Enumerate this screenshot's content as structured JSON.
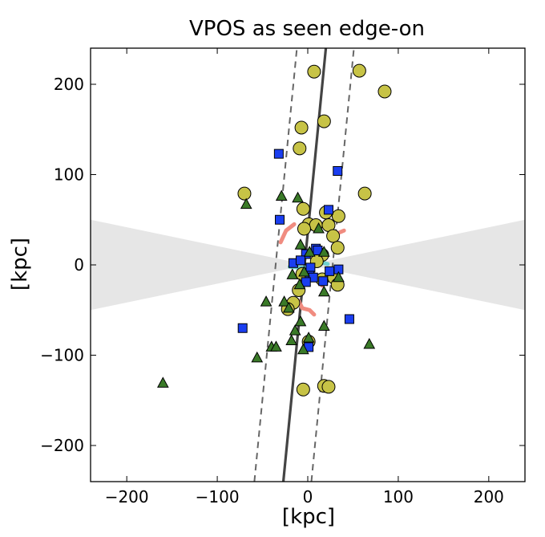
{
  "chart_data": {
    "type": "scatter",
    "title": "VPOS as seen edge-on",
    "xlabel": "[kpc]",
    "ylabel": "[kpc]",
    "xlim": [
      -240,
      240
    ],
    "ylim": [
      -240,
      240
    ],
    "xticks": [
      -200,
      -100,
      0,
      100,
      200
    ],
    "yticks": [
      -200,
      -100,
      0,
      100,
      200
    ],
    "xtick_labels": [
      "−200",
      "−100",
      "0",
      "100",
      "200"
    ],
    "ytick_labels": [
      "−200",
      "−100",
      "0",
      "100",
      "200"
    ],
    "grid": false,
    "colors": {
      "circle_fill": "#c7c346",
      "square_fill": "#1a3ef0",
      "triangle_fill": "#3a7a28",
      "wedge_fill": "#e6e6e6",
      "fit_line": "#444444",
      "dashed_line": "#666666",
      "pink_track": "#f08c80",
      "cyan_track": "#6ed0d0"
    },
    "obscured_wedge": {
      "left_edge_y": [
        -50,
        50
      ],
      "right_edge_y": [
        -50,
        50
      ]
    },
    "fit_line": {
      "x_at_ymin": -27,
      "x_at_ymax": 20
    },
    "dashed_lines": [
      {
        "x_at_ymin": -59,
        "x_at_ymax": -12
      },
      {
        "x_at_ymin": 4,
        "x_at_ymax": 51
      }
    ],
    "series": [
      {
        "marker": "circle",
        "points": [
          [
            7,
            214
          ],
          [
            57,
            215
          ],
          [
            85,
            192
          ],
          [
            -7,
            152
          ],
          [
            18,
            159
          ],
          [
            -9,
            129
          ],
          [
            -70,
            79
          ],
          [
            63,
            79
          ],
          [
            -5,
            62
          ],
          [
            20,
            58
          ],
          [
            1,
            45
          ],
          [
            9,
            44
          ],
          [
            34,
            54
          ],
          [
            23,
            44
          ],
          [
            -4,
            40
          ],
          [
            28,
            32
          ],
          [
            33,
            19
          ],
          [
            16,
            11
          ],
          [
            10,
            4
          ],
          [
            -6,
            -10
          ],
          [
            16,
            -16
          ],
          [
            29,
            -14
          ],
          [
            33,
            -22
          ],
          [
            -10,
            -28
          ],
          [
            -16,
            -42
          ],
          [
            -22,
            -49
          ],
          [
            1,
            -85
          ],
          [
            -5,
            -138
          ],
          [
            18,
            -134
          ],
          [
            23,
            -135
          ]
        ]
      },
      {
        "marker": "square",
        "points": [
          [
            -32,
            123
          ],
          [
            33,
            104
          ],
          [
            -31,
            50
          ],
          [
            23,
            61
          ],
          [
            9,
            18
          ],
          [
            -2,
            12
          ],
          [
            11,
            16
          ],
          [
            -16,
            2
          ],
          [
            -8,
            5
          ],
          [
            3,
            -3
          ],
          [
            34,
            -5
          ],
          [
            24,
            -7
          ],
          [
            2,
            -12
          ],
          [
            6,
            -14
          ],
          [
            -2,
            -19
          ],
          [
            17,
            -18
          ],
          [
            -72,
            -70
          ],
          [
            46,
            -60
          ],
          [
            1,
            -91
          ]
        ]
      },
      {
        "marker": "triangle",
        "points": [
          [
            -160,
            -131
          ],
          [
            -68,
            67
          ],
          [
            -29,
            76
          ],
          [
            -11,
            74
          ],
          [
            12,
            40
          ],
          [
            -8,
            22
          ],
          [
            18,
            14
          ],
          [
            2,
            14
          ],
          [
            -4,
            -8
          ],
          [
            -9,
            -22
          ],
          [
            18,
            -30
          ],
          [
            34,
            -14
          ],
          [
            -26,
            -41
          ],
          [
            -21,
            -48
          ],
          [
            -8,
            -63
          ],
          [
            -14,
            -73
          ],
          [
            -18,
            -84
          ],
          [
            -5,
            -94
          ],
          [
            -40,
            -91
          ],
          [
            -56,
            -103
          ],
          [
            -35,
            -91
          ],
          [
            18,
            -68
          ],
          [
            68,
            -88
          ],
          [
            1,
            -81
          ],
          [
            -46,
            -41
          ],
          [
            -17,
            -11
          ]
        ]
      }
    ],
    "tracks": [
      {
        "color": "pink",
        "points": [
          [
            -30,
            25
          ],
          [
            -24,
            38
          ],
          [
            -15,
            45
          ]
        ]
      },
      {
        "color": "pink",
        "points": [
          [
            28,
            29
          ],
          [
            33,
            35
          ],
          [
            40,
            38
          ]
        ]
      },
      {
        "color": "pink",
        "points": [
          [
            -10,
            -40
          ],
          [
            -6,
            -48
          ],
          [
            2,
            -50
          ],
          [
            7,
            -55
          ]
        ]
      },
      {
        "color": "pink",
        "points": [
          [
            10,
            -17
          ],
          [
            16,
            -23
          ]
        ]
      },
      {
        "color": "cyan",
        "points": [
          [
            -20,
            -2
          ],
          [
            -10,
            -3
          ],
          [
            -2,
            -3
          ]
        ]
      },
      {
        "color": "cyan",
        "points": [
          [
            4,
            -1
          ],
          [
            10,
            4
          ],
          [
            22,
            1
          ]
        ]
      }
    ]
  }
}
